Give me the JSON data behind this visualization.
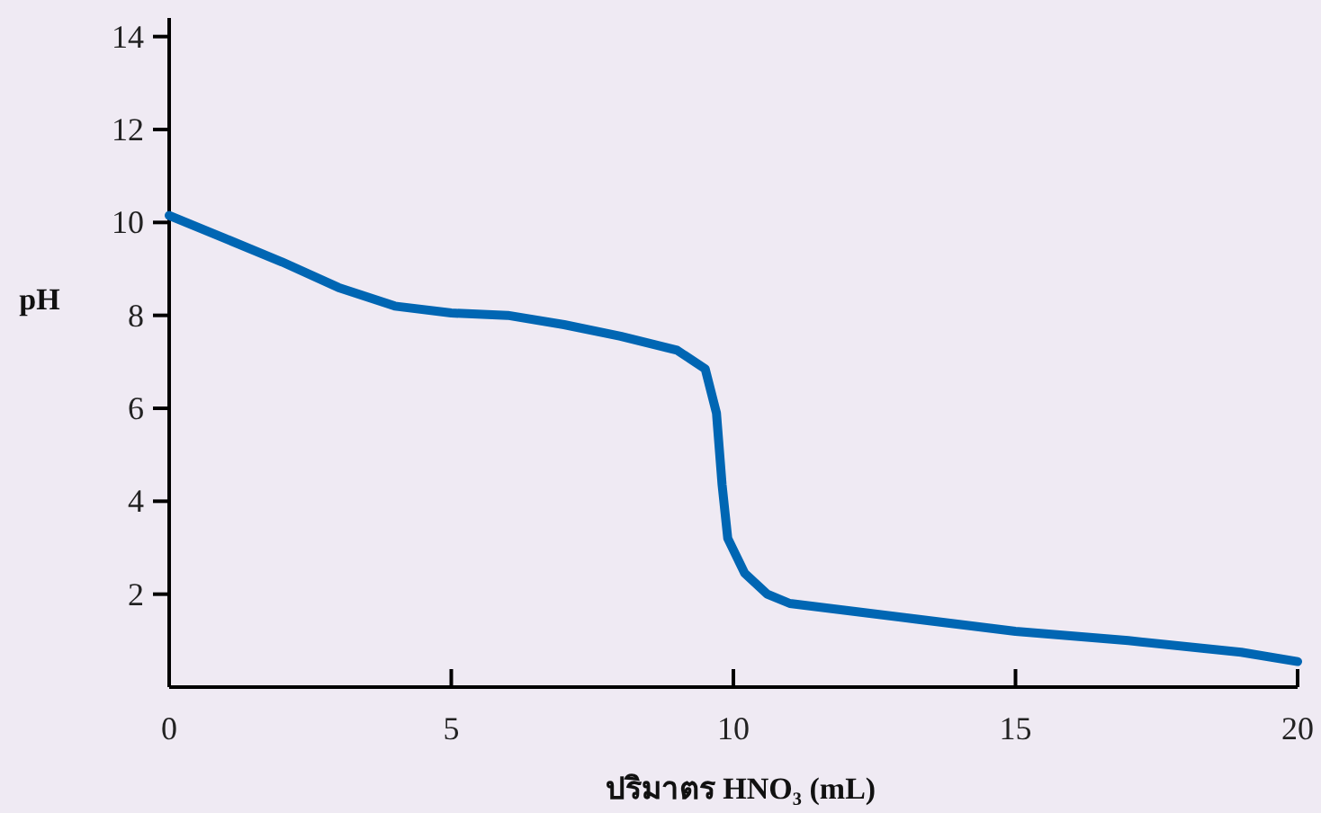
{
  "chart_data": {
    "type": "line",
    "xlabel": "ปริมาตร HNO₃ (mL)",
    "ylabel": "pH",
    "x": [
      0,
      1,
      2,
      3,
      4,
      5,
      6,
      7,
      8,
      9,
      9.5,
      9.7,
      9.8,
      9.9,
      10.2,
      10.6,
      11,
      12,
      13,
      15,
      17,
      19,
      20
    ],
    "series": [
      {
        "color": "#0066b3",
        "values": [
          10.15,
          9.65,
          9.15,
          8.6,
          8.2,
          8.05,
          8.0,
          7.8,
          7.55,
          7.25,
          6.85,
          5.9,
          4.35,
          3.2,
          2.45,
          2.0,
          1.8,
          1.65,
          1.5,
          1.2,
          1.0,
          0.75,
          0.55
        ]
      }
    ],
    "xlim": [
      0,
      20
    ],
    "ylim": [
      0,
      14.4
    ],
    "xticks": [
      0,
      5,
      10,
      15,
      20
    ],
    "yticks": [
      2,
      4,
      6,
      8,
      10,
      12,
      14
    ],
    "marker": "none",
    "line_style": "solid"
  }
}
